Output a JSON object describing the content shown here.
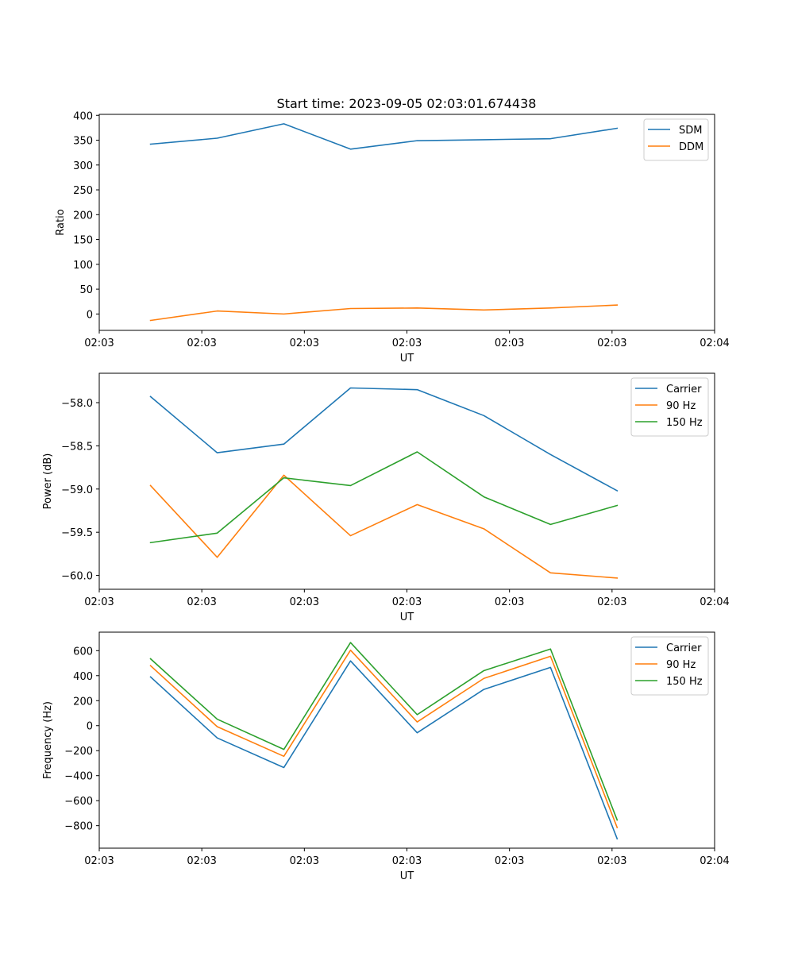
{
  "figure": {
    "title": "Start time: 2023-09-05 02:03:01.674438"
  },
  "chart_data": [
    {
      "type": "line",
      "title": "Start time: 2023-09-05 02:03:01.674438",
      "xlabel": "UT",
      "ylabel": "Ratio",
      "x": [
        0.5,
        1.15,
        1.8,
        2.45,
        3.1,
        3.75,
        4.4,
        5.05
      ],
      "xlim": [
        0,
        6
      ],
      "xticks": [
        0,
        1,
        2,
        3,
        4,
        5,
        6
      ],
      "xtick_labels": [
        "02:03",
        "02:03",
        "02:03",
        "02:03",
        "02:03",
        "02:03",
        "02:04"
      ],
      "ylim": [
        -33,
        402
      ],
      "yticks": [
        0,
        50,
        100,
        150,
        200,
        250,
        300,
        350,
        400
      ],
      "ytick_labels": [
        "0",
        "50",
        "100",
        "150",
        "200",
        "250",
        "300",
        "350",
        "400"
      ],
      "legend": "top-right",
      "series": [
        {
          "name": "SDM",
          "color": "#1f77b4",
          "values": [
            342,
            354,
            383,
            332,
            349,
            351,
            353,
            374
          ]
        },
        {
          "name": "DDM",
          "color": "#ff7f0e",
          "values": [
            -13,
            6,
            0,
            11,
            12,
            8,
            12,
            18
          ]
        }
      ]
    },
    {
      "type": "line",
      "xlabel": "UT",
      "ylabel": "Power (dB)",
      "x": [
        0.5,
        1.15,
        1.8,
        2.45,
        3.1,
        3.75,
        4.4,
        5.05
      ],
      "xlim": [
        0,
        6
      ],
      "xticks": [
        0,
        1,
        2,
        3,
        4,
        5,
        6
      ],
      "xtick_labels": [
        "02:03",
        "02:03",
        "02:03",
        "02:03",
        "02:03",
        "02:03",
        "02:04"
      ],
      "ylim": [
        -60.16,
        -57.66
      ],
      "yticks": [
        -60.0,
        -59.5,
        -59.0,
        -58.5,
        -58.0
      ],
      "ytick_labels": [
        "−60.0",
        "−59.5",
        "−59.0",
        "−58.5",
        "−58.0"
      ],
      "legend": "top-right",
      "series": [
        {
          "name": "Carrier",
          "color": "#1f77b4",
          "values": [
            -57.93,
            -58.58,
            -58.48,
            -57.83,
            -57.85,
            -58.15,
            -58.6,
            -59.02
          ]
        },
        {
          "name": "90 Hz",
          "color": "#ff7f0e",
          "values": [
            -58.96,
            -59.79,
            -58.84,
            -59.54,
            -59.18,
            -59.46,
            -59.97,
            -60.03
          ]
        },
        {
          "name": "150 Hz",
          "color": "#2ca02c",
          "values": [
            -59.62,
            -59.51,
            -58.87,
            -58.96,
            -58.57,
            -59.09,
            -59.41,
            -59.19
          ]
        }
      ]
    },
    {
      "type": "line",
      "xlabel": "UT",
      "ylabel": "Frequency (Hz)",
      "x": [
        0.5,
        1.15,
        1.8,
        2.45,
        3.1,
        3.75,
        4.4,
        5.05
      ],
      "xlim": [
        0,
        6
      ],
      "xticks": [
        0,
        1,
        2,
        3,
        4,
        5,
        6
      ],
      "xtick_labels": [
        "02:03",
        "02:03",
        "02:03",
        "02:03",
        "02:03",
        "02:03",
        "02:04"
      ],
      "ylim": [
        -980,
        748
      ],
      "yticks": [
        -800,
        -600,
        -400,
        -200,
        0,
        200,
        400,
        600
      ],
      "ytick_labels": [
        "−800",
        "−600",
        "−400",
        "−200",
        "0",
        "200",
        "400",
        "600"
      ],
      "legend": "top-right",
      "series": [
        {
          "name": "Carrier",
          "color": "#1f77b4",
          "values": [
            390,
            -98,
            -335,
            518,
            -57,
            290,
            466,
            -905
          ]
        },
        {
          "name": "90 Hz",
          "color": "#ff7f0e",
          "values": [
            480,
            -8,
            -245,
            604,
            30,
            378,
            555,
            -815
          ]
        },
        {
          "name": "150 Hz",
          "color": "#2ca02c",
          "values": [
            535,
            52,
            -190,
            665,
            88,
            440,
            613,
            -755
          ]
        }
      ]
    }
  ]
}
